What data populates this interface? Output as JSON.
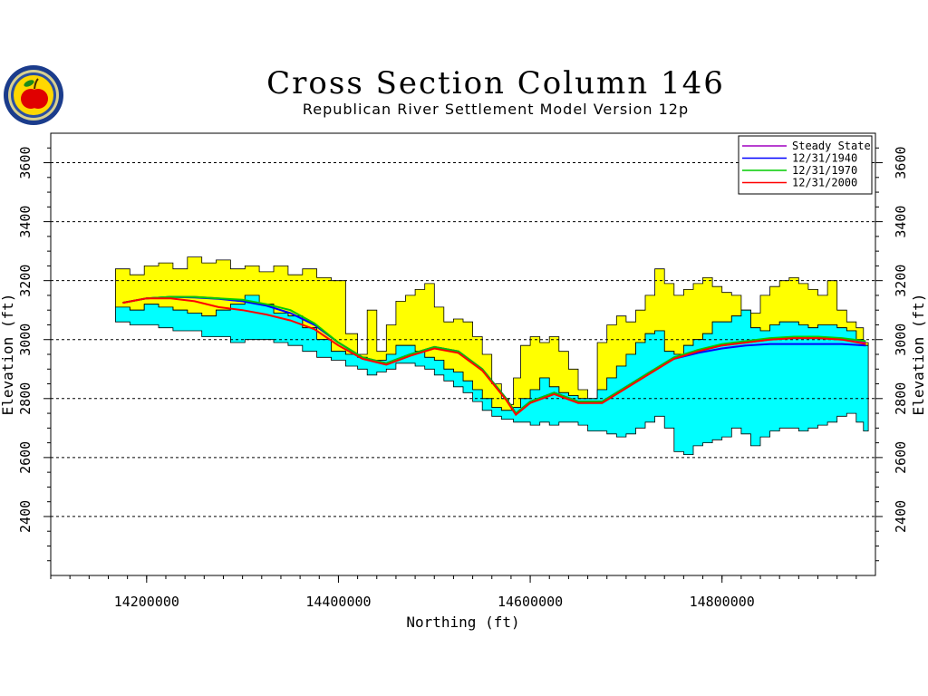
{
  "header": {
    "title": "Cross Section Column 146",
    "subtitle": "Republican River Settlement Model Version 12p"
  },
  "seal": {
    "icon": "state-seal-apple-icon"
  },
  "chart_data": {
    "type": "area",
    "title": "Cross Section Column 146",
    "subtitle": "Republican River Settlement Model Version 12p",
    "xlabel": "Northing (ft)",
    "ylabel": "Elevation (ft)",
    "xlim": [
      14100000,
      14960000
    ],
    "ylim": [
      2200000,
      3700000
    ],
    "ylim_ft": [
      2200,
      3700
    ],
    "x_ticks": [
      14200000,
      14400000,
      14600000,
      14800000
    ],
    "x_tick_labels": [
      "14200000",
      "14400000",
      "14600000",
      "14800000"
    ],
    "y_ticks": [
      2400,
      2600,
      2800,
      3000,
      3200,
      3400,
      3600
    ],
    "y_tick_labels": [
      "2400",
      "2600",
      "2800",
      "3000",
      "3200",
      "3400",
      "3600"
    ],
    "grid": "horizontal dashed",
    "legend_position": "top-right",
    "colors": {
      "upper_layer": "#ffff00",
      "lower_layer": "#00ffff",
      "steady_state": "#a000c0",
      "y1940": "#0000ff",
      "y1970": "#00cc00",
      "y2000": "#ff0000"
    },
    "layers": {
      "x": [
        14175000,
        14190000,
        14205000,
        14220000,
        14235000,
        14250000,
        14265000,
        14280000,
        14295000,
        14310000,
        14325000,
        14340000,
        14355000,
        14370000,
        14385000,
        14400000,
        14415000,
        14425000,
        14435000,
        14445000,
        14455000,
        14465000,
        14475000,
        14485000,
        14495000,
        14505000,
        14515000,
        14525000,
        14535000,
        14545000,
        14555000,
        14565000,
        14575000,
        14580000,
        14585000,
        14595000,
        14605000,
        14615000,
        14625000,
        14635000,
        14645000,
        14655000,
        14665000,
        14675000,
        14685000,
        14695000,
        14705000,
        14715000,
        14725000,
        14735000,
        14745000,
        14755000,
        14765000,
        14775000,
        14785000,
        14795000,
        14805000,
        14815000,
        14825000,
        14835000,
        14845000,
        14855000,
        14865000,
        14875000,
        14885000,
        14895000,
        14905000,
        14915000,
        14925000,
        14935000,
        14945000,
        14950000
      ],
      "top": [
        3240,
        3220,
        3250,
        3260,
        3240,
        3280,
        3260,
        3270,
        3240,
        3250,
        3230,
        3250,
        3220,
        3240,
        3210,
        3200,
        3020,
        2950,
        3100,
        2960,
        3050,
        3130,
        3150,
        3170,
        3190,
        3110,
        3060,
        3070,
        3060,
        3010,
        2950,
        2850,
        2800,
        2780,
        2870,
        2980,
        3010,
        2990,
        3010,
        2960,
        2900,
        2830,
        2780,
        2990,
        3050,
        3080,
        3060,
        3100,
        3150,
        3240,
        3190,
        3150,
        3170,
        3190,
        3210,
        3180,
        3160,
        3150,
        3100,
        3090,
        3150,
        3180,
        3200,
        3210,
        3190,
        3170,
        3150,
        3200,
        3100,
        3060,
        3040,
        2990
      ],
      "mid": [
        3110,
        3100,
        3120,
        3110,
        3100,
        3090,
        3080,
        3100,
        3120,
        3150,
        3120,
        3090,
        3080,
        3040,
        3000,
        2960,
        2950,
        2940,
        2930,
        2930,
        2950,
        2980,
        2980,
        2960,
        2940,
        2930,
        2900,
        2890,
        2860,
        2830,
        2800,
        2770,
        2760,
        2760,
        2770,
        2800,
        2830,
        2870,
        2840,
        2820,
        2810,
        2800,
        2800,
        2830,
        2870,
        2910,
        2950,
        2990,
        3020,
        3030,
        2960,
        2950,
        2980,
        3000,
        3020,
        3060,
        3060,
        3080,
        3100,
        3040,
        3030,
        3050,
        3060,
        3060,
        3050,
        3040,
        3050,
        3050,
        3040,
        3030,
        3000,
        2980
      ],
      "bottom": [
        3060,
        3050,
        3050,
        3040,
        3030,
        3030,
        3010,
        3010,
        2990,
        3000,
        3000,
        2990,
        2980,
        2960,
        2940,
        2930,
        2910,
        2900,
        2880,
        2890,
        2900,
        2920,
        2920,
        2910,
        2900,
        2880,
        2860,
        2840,
        2820,
        2790,
        2760,
        2740,
        2730,
        2730,
        2720,
        2720,
        2710,
        2720,
        2710,
        2720,
        2720,
        2710,
        2690,
        2690,
        2680,
        2670,
        2680,
        2700,
        2720,
        2740,
        2700,
        2620,
        2610,
        2640,
        2650,
        2660,
        2670,
        2700,
        2680,
        2640,
        2670,
        2690,
        2700,
        2700,
        2690,
        2700,
        2710,
        2720,
        2740,
        2750,
        2720,
        2690
      ]
    },
    "series": [
      {
        "name": "Steady State",
        "x": [
          14175000,
          14200000,
          14225000,
          14250000,
          14275000,
          14300000,
          14325000,
          14350000,
          14375000,
          14400000,
          14425000,
          14450000,
          14475000,
          14500000,
          14525000,
          14550000,
          14575000,
          14585000,
          14600000,
          14625000,
          14650000,
          14675000,
          14700000,
          14725000,
          14750000,
          14775000,
          14800000,
          14825000,
          14850000,
          14875000,
          14900000,
          14925000,
          14950000
        ],
        "values": [
          3125,
          3140,
          3145,
          3145,
          3140,
          3130,
          3115,
          3090,
          3050,
          2990,
          2940,
          2920,
          2950,
          2975,
          2960,
          2900,
          2800,
          2750,
          2790,
          2820,
          2790,
          2790,
          2840,
          2890,
          2940,
          2960,
          2980,
          2990,
          3000,
          3005,
          3005,
          3000,
          2990
        ]
      },
      {
        "name": "12/31/1940",
        "x": [
          14175000,
          14200000,
          14225000,
          14250000,
          14275000,
          14300000,
          14325000,
          14350000,
          14375000,
          14400000,
          14425000,
          14450000,
          14475000,
          14500000,
          14525000,
          14550000,
          14575000,
          14585000,
          14600000,
          14625000,
          14650000,
          14675000,
          14700000,
          14725000,
          14750000,
          14775000,
          14800000,
          14825000,
          14850000,
          14875000,
          14900000,
          14925000,
          14950000
        ],
        "values": [
          3125,
          3140,
          3145,
          3143,
          3138,
          3130,
          3115,
          3090,
          3050,
          2990,
          2940,
          2920,
          2950,
          2975,
          2960,
          2900,
          2800,
          2750,
          2790,
          2820,
          2790,
          2790,
          2840,
          2890,
          2935,
          2955,
          2970,
          2980,
          2985,
          2985,
          2985,
          2985,
          2980
        ]
      },
      {
        "name": "12/31/1970",
        "x": [
          14175000,
          14200000,
          14225000,
          14250000,
          14275000,
          14300000,
          14325000,
          14350000,
          14375000,
          14400000,
          14425000,
          14450000,
          14475000,
          14500000,
          14525000,
          14550000,
          14575000,
          14585000,
          14600000,
          14625000,
          14650000,
          14675000,
          14700000,
          14725000,
          14750000,
          14775000,
          14800000,
          14825000,
          14850000,
          14875000,
          14900000,
          14925000,
          14950000
        ],
        "values": [
          3125,
          3140,
          3145,
          3145,
          3140,
          3135,
          3120,
          3100,
          3055,
          2990,
          2940,
          2920,
          2950,
          2975,
          2960,
          2900,
          2800,
          2750,
          2790,
          2820,
          2790,
          2790,
          2840,
          2890,
          2940,
          2965,
          2985,
          2995,
          3005,
          3010,
          3010,
          3005,
          2995
        ]
      },
      {
        "name": "12/31/2000",
        "x": [
          14175000,
          14200000,
          14225000,
          14250000,
          14275000,
          14300000,
          14325000,
          14350000,
          14375000,
          14400000,
          14425000,
          14450000,
          14475000,
          14500000,
          14525000,
          14550000,
          14575000,
          14585000,
          14600000,
          14625000,
          14650000,
          14675000,
          14700000,
          14725000,
          14750000,
          14775000,
          14800000,
          14825000,
          14850000,
          14875000,
          14900000,
          14925000,
          14950000
        ],
        "values": [
          3125,
          3140,
          3140,
          3130,
          3110,
          3100,
          3085,
          3065,
          3035,
          2980,
          2935,
          2915,
          2945,
          2970,
          2955,
          2895,
          2795,
          2745,
          2785,
          2815,
          2785,
          2785,
          2835,
          2885,
          2935,
          2960,
          2980,
          2990,
          3000,
          3005,
          3005,
          3000,
          2985
        ]
      }
    ]
  }
}
